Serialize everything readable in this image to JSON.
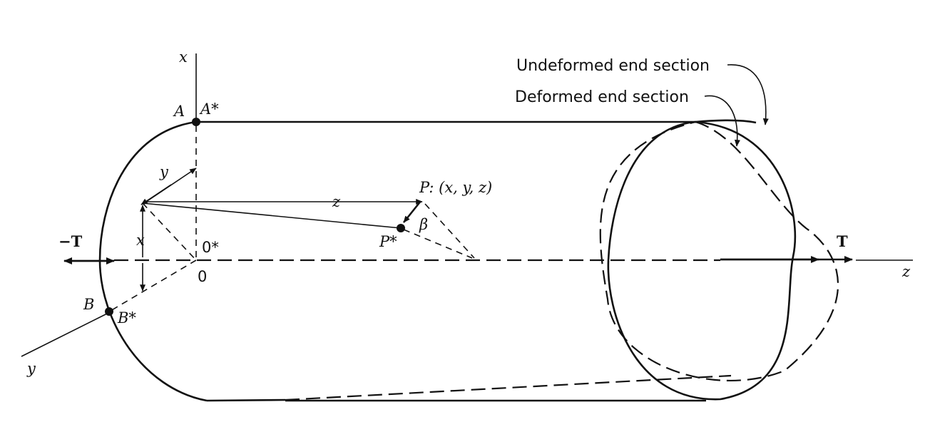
{
  "labels": {
    "x_axis": "x",
    "y_axis": "y",
    "z_axis": "z",
    "point_A": "A",
    "point_A_star": "A*",
    "point_B": "B",
    "point_B_star": "B*",
    "origin": "0",
    "origin_star": "0*",
    "point_P": "P: (x, y, z)",
    "point_P_star": "P*",
    "angle_beta": "β",
    "coord_x": "x",
    "coord_y": "y",
    "coord_z": "z",
    "torque_left": "−T",
    "torque_right": "T"
  },
  "callouts": {
    "undeformed": "Undeformed end section",
    "deformed": "Deformed end section"
  },
  "colors": {
    "ink": "#111111",
    "background": "#ffffff"
  }
}
